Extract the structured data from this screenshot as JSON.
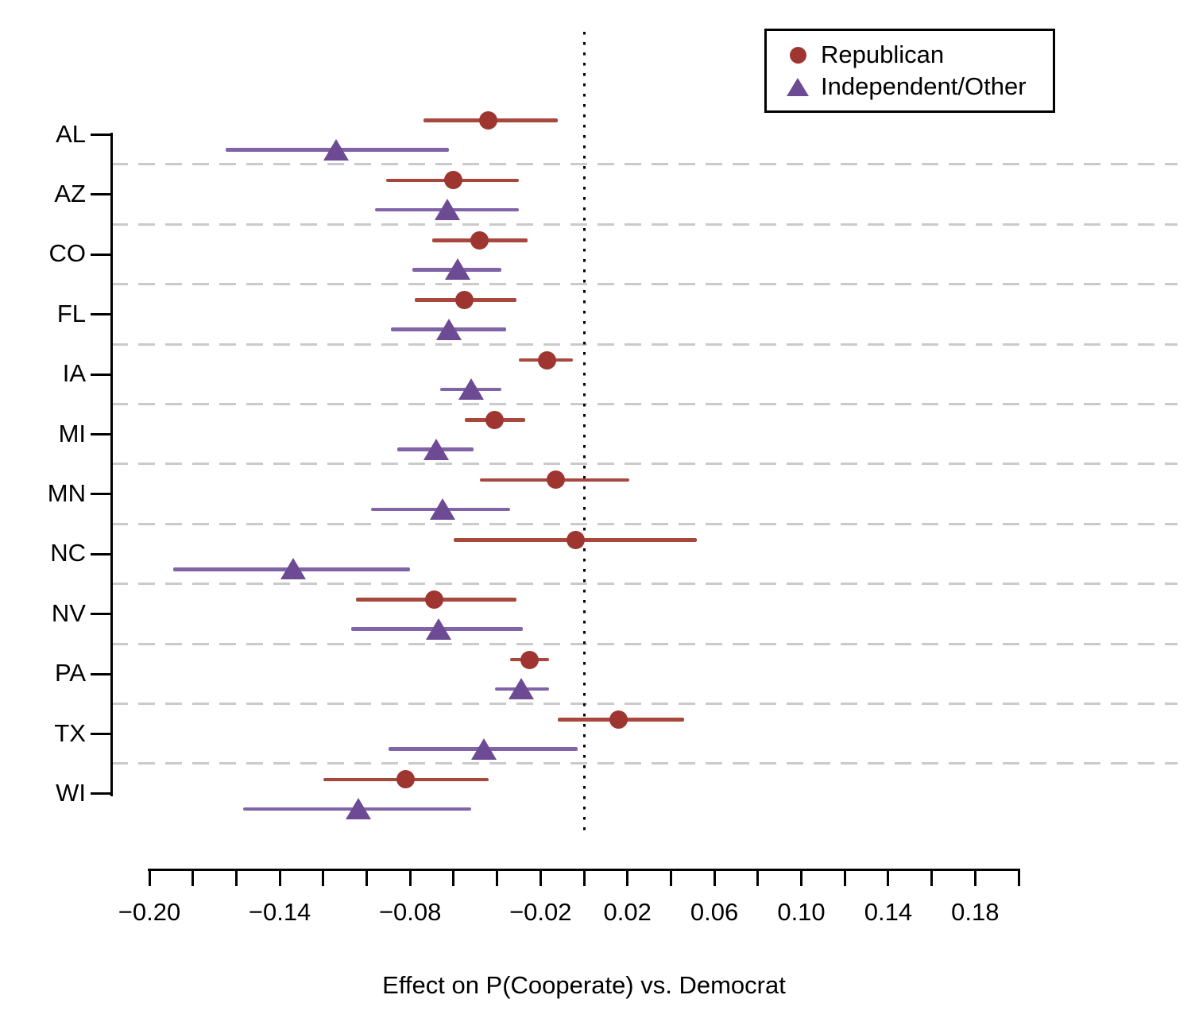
{
  "figure": {
    "xlabel": "Effect on P(Cooperate) vs. Democrat",
    "background_color": "#FFFFFF",
    "axis_color": "#000000",
    "gridline_color": "#CACACA"
  },
  "legend": {
    "position": "top-right",
    "items": [
      {
        "label": "Republican",
        "marker": "circle",
        "color": "#9E3530"
      },
      {
        "label": "Independent/Other",
        "marker": "triangle",
        "color": "#6C4B94"
      }
    ]
  },
  "chart_data": {
    "type": "scatter",
    "subtype": "dot-and-whisker coefficient plot",
    "title": "",
    "xlabel": "Effect on P(Cooperate) vs. Democrat",
    "ylabel": "",
    "x_range": [
      -0.2,
      0.2
    ],
    "x_tick_step": 0.02,
    "x_tick_labels": [
      {
        "value": -0.2,
        "label": "−0.20"
      },
      {
        "value": -0.14,
        "label": "−0.14"
      },
      {
        "value": -0.08,
        "label": "−0.08"
      },
      {
        "value": -0.02,
        "label": "−0.02"
      },
      {
        "value": 0.02,
        "label": "0.02"
      },
      {
        "value": 0.06,
        "label": "0.06"
      },
      {
        "value": 0.1,
        "label": "0.10"
      },
      {
        "value": 0.14,
        "label": "0.14"
      },
      {
        "value": 0.18,
        "label": "0.18"
      }
    ],
    "reference_line_x": 0,
    "grid": "dashed horizontal separators between state blocks",
    "legend_position": "top-right",
    "categories": [
      "AL",
      "AZ",
      "CO",
      "FL",
      "IA",
      "MI",
      "MN",
      "NC",
      "NV",
      "PA",
      "TX",
      "WI"
    ],
    "series": [
      {
        "name": "Republican",
        "marker": "circle",
        "marker_color": "#9E3530",
        "line_color": "#A8483D",
        "estimates": [
          -0.044,
          -0.06,
          -0.048,
          -0.055,
          -0.017,
          -0.041,
          -0.013,
          -0.004,
          -0.069,
          -0.025,
          0.016,
          -0.082
        ],
        "ci_low": [
          -0.074,
          -0.091,
          -0.07,
          -0.078,
          -0.03,
          -0.055,
          -0.048,
          -0.06,
          -0.105,
          -0.034,
          -0.012,
          -0.12
        ],
        "ci_high": [
          -0.012,
          -0.03,
          -0.026,
          -0.031,
          -0.005,
          -0.027,
          0.021,
          0.052,
          -0.031,
          -0.016,
          0.046,
          -0.044
        ]
      },
      {
        "name": "Independent/Other",
        "marker": "triangle",
        "marker_color": "#6C4B94",
        "line_color": "#8164A8",
        "estimates": [
          -0.114,
          -0.063,
          -0.058,
          -0.062,
          -0.052,
          -0.068,
          -0.065,
          -0.134,
          -0.067,
          -0.029,
          -0.046,
          -0.104
        ],
        "ci_low": [
          -0.165,
          -0.096,
          -0.079,
          -0.089,
          -0.066,
          -0.086,
          -0.098,
          -0.189,
          -0.107,
          -0.041,
          -0.09,
          -0.157
        ],
        "ci_high": [
          -0.062,
          -0.03,
          -0.038,
          -0.036,
          -0.038,
          -0.051,
          -0.034,
          -0.08,
          -0.028,
          -0.016,
          -0.003,
          -0.052
        ]
      }
    ]
  }
}
